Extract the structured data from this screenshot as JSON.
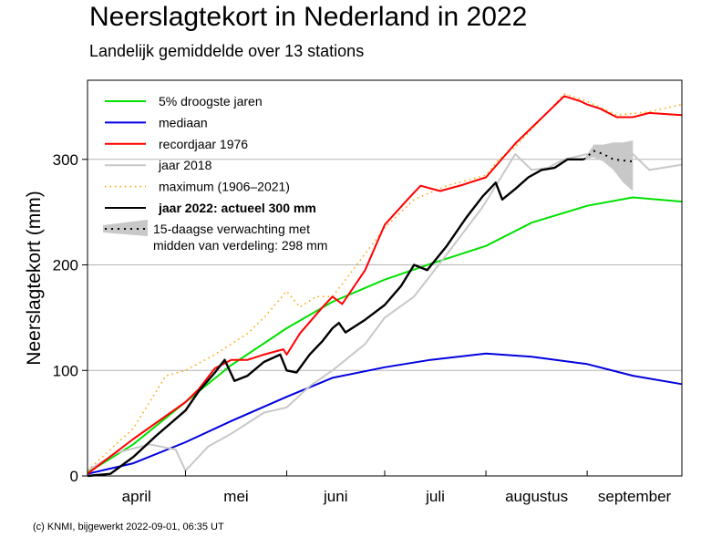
{
  "title": "Neerslagtekort in Nederland in 2022",
  "subtitle": "Landelijk gemiddelde over 13 stations",
  "footer": "(c) KNMI, bijgewerkt 2022-09-01, 06:35 UT",
  "chart_data": {
    "type": "line",
    "ylabel": "Neerslagtekort (mm)",
    "xlabel": "",
    "ylim": [
      0,
      375
    ],
    "y_ticks": [
      0,
      100,
      200,
      300
    ],
    "x_domain": [
      "2022-04-01",
      "2022-09-30"
    ],
    "x_month_labels": [
      "april",
      "mei",
      "juni",
      "juli",
      "augustus",
      "september"
    ],
    "grid": "horizontal at 100, 200, 300",
    "legend_position": "top-left",
    "series": [
      {
        "name": "5% droogste jaren",
        "color": "#00e000",
        "style": "solid",
        "points": [
          [
            "2022-04-01",
            3
          ],
          [
            "2022-04-15",
            30
          ],
          [
            "2022-05-01",
            70
          ],
          [
            "2022-05-15",
            105
          ],
          [
            "2022-06-01",
            140
          ],
          [
            "2022-06-15",
            165
          ],
          [
            "2022-07-01",
            186
          ],
          [
            "2022-07-15",
            201
          ],
          [
            "2022-08-01",
            218
          ],
          [
            "2022-08-15",
            240
          ],
          [
            "2022-09-01",
            256
          ],
          [
            "2022-09-15",
            264
          ],
          [
            "2022-09-30",
            260
          ]
        ]
      },
      {
        "name": "mediaan",
        "color": "#0000e0",
        "style": "solid",
        "points": [
          [
            "2022-04-01",
            2
          ],
          [
            "2022-04-15",
            12
          ],
          [
            "2022-05-01",
            32
          ],
          [
            "2022-05-15",
            52
          ],
          [
            "2022-06-01",
            75
          ],
          [
            "2022-06-15",
            93
          ],
          [
            "2022-07-01",
            103
          ],
          [
            "2022-07-15",
            110
          ],
          [
            "2022-08-01",
            116
          ],
          [
            "2022-08-15",
            113
          ],
          [
            "2022-09-01",
            106
          ],
          [
            "2022-09-15",
            95
          ],
          [
            "2022-09-30",
            87
          ]
        ]
      },
      {
        "name": "recordjaar 1976",
        "color": "#ff0000",
        "style": "solid",
        "points": [
          [
            "2022-04-01",
            2
          ],
          [
            "2022-04-15",
            35
          ],
          [
            "2022-05-01",
            70
          ],
          [
            "2022-05-05",
            82
          ],
          [
            "2022-05-10",
            102
          ],
          [
            "2022-05-15",
            110
          ],
          [
            "2022-05-20",
            110
          ],
          [
            "2022-05-25",
            115
          ],
          [
            "2022-05-31",
            120
          ],
          [
            "2022-06-01",
            115
          ],
          [
            "2022-06-05",
            135
          ],
          [
            "2022-06-12",
            160
          ],
          [
            "2022-06-15",
            170
          ],
          [
            "2022-06-18",
            163
          ],
          [
            "2022-06-25",
            195
          ],
          [
            "2022-07-01",
            238
          ],
          [
            "2022-07-08",
            262
          ],
          [
            "2022-07-12",
            275
          ],
          [
            "2022-07-18",
            270
          ],
          [
            "2022-07-25",
            276
          ],
          [
            "2022-08-01",
            283
          ],
          [
            "2022-08-10",
            315
          ],
          [
            "2022-08-20",
            345
          ],
          [
            "2022-08-25",
            360
          ],
          [
            "2022-08-30",
            355
          ],
          [
            "2022-09-01",
            352
          ],
          [
            "2022-09-05",
            348
          ],
          [
            "2022-09-10",
            340
          ],
          [
            "2022-09-15",
            340
          ],
          [
            "2022-09-20",
            344
          ],
          [
            "2022-09-30",
            342
          ]
        ]
      },
      {
        "name": "jaar 2018",
        "color": "#c8c8c8",
        "style": "solid",
        "points": [
          [
            "2022-04-01",
            5
          ],
          [
            "2022-04-10",
            22
          ],
          [
            "2022-04-20",
            30
          ],
          [
            "2022-04-28",
            25
          ],
          [
            "2022-05-01",
            5
          ],
          [
            "2022-05-08",
            28
          ],
          [
            "2022-05-15",
            40
          ],
          [
            "2022-05-25",
            60
          ],
          [
            "2022-06-01",
            65
          ],
          [
            "2022-06-08",
            85
          ],
          [
            "2022-06-15",
            100
          ],
          [
            "2022-06-25",
            125
          ],
          [
            "2022-07-01",
            150
          ],
          [
            "2022-07-10",
            170
          ],
          [
            "2022-07-20",
            210
          ],
          [
            "2022-07-31",
            255
          ],
          [
            "2022-08-05",
            280
          ],
          [
            "2022-08-10",
            305
          ],
          [
            "2022-08-15",
            290
          ],
          [
            "2022-08-20",
            292
          ],
          [
            "2022-08-25",
            300
          ],
          [
            "2022-09-01",
            305
          ],
          [
            "2022-09-10",
            302
          ],
          [
            "2022-09-15",
            305
          ],
          [
            "2022-09-20",
            290
          ],
          [
            "2022-09-30",
            295
          ]
        ]
      },
      {
        "name": "maximum (1906–2021)",
        "color": "#ffa500",
        "style": "dotted",
        "points": [
          [
            "2022-04-01",
            5
          ],
          [
            "2022-04-15",
            45
          ],
          [
            "2022-04-25",
            95
          ],
          [
            "2022-05-01",
            100
          ],
          [
            "2022-05-10",
            115
          ],
          [
            "2022-05-20",
            135
          ],
          [
            "2022-05-25",
            150
          ],
          [
            "2022-06-01",
            175
          ],
          [
            "2022-06-05",
            160
          ],
          [
            "2022-06-10",
            170
          ],
          [
            "2022-06-15",
            170
          ],
          [
            "2022-06-20",
            190
          ],
          [
            "2022-07-01",
            235
          ],
          [
            "2022-07-10",
            262
          ],
          [
            "2022-07-20",
            275
          ],
          [
            "2022-08-01",
            285
          ],
          [
            "2022-08-05",
            300
          ],
          [
            "2022-08-10",
            312
          ],
          [
            "2022-08-20",
            345
          ],
          [
            "2022-08-25",
            362
          ],
          [
            "2022-09-01",
            355
          ],
          [
            "2022-09-10",
            342
          ],
          [
            "2022-09-20",
            345
          ],
          [
            "2022-09-30",
            352
          ]
        ]
      },
      {
        "name": "jaar 2022: actueel 300 mm",
        "color": "#000000",
        "style": "solid",
        "points": [
          [
            "2022-04-01",
            0
          ],
          [
            "2022-04-08",
            2
          ],
          [
            "2022-04-15",
            18
          ],
          [
            "2022-04-22",
            38
          ],
          [
            "2022-05-01",
            62
          ],
          [
            "2022-05-05",
            80
          ],
          [
            "2022-05-10",
            98
          ],
          [
            "2022-05-13",
            110
          ],
          [
            "2022-05-16",
            90
          ],
          [
            "2022-05-20",
            95
          ],
          [
            "2022-05-25",
            108
          ],
          [
            "2022-05-30",
            115
          ],
          [
            "2022-06-01",
            100
          ],
          [
            "2022-06-04",
            98
          ],
          [
            "2022-06-08",
            115
          ],
          [
            "2022-06-12",
            128
          ],
          [
            "2022-06-15",
            140
          ],
          [
            "2022-06-17",
            145
          ],
          [
            "2022-06-19",
            136
          ],
          [
            "2022-06-25",
            148
          ],
          [
            "2022-07-01",
            162
          ],
          [
            "2022-07-06",
            180
          ],
          [
            "2022-07-10",
            200
          ],
          [
            "2022-07-14",
            195
          ],
          [
            "2022-07-20",
            218
          ],
          [
            "2022-07-26",
            245
          ],
          [
            "2022-07-31",
            265
          ],
          [
            "2022-08-04",
            278
          ],
          [
            "2022-08-06",
            262
          ],
          [
            "2022-08-10",
            272
          ],
          [
            "2022-08-14",
            283
          ],
          [
            "2022-08-18",
            290
          ],
          [
            "2022-08-22",
            292
          ],
          [
            "2022-08-26",
            300
          ],
          [
            "2022-08-31",
            300
          ]
        ]
      }
    ],
    "forecast": {
      "label": "15-daagse verwachting met midden van verdeling: 298 mm",
      "color": "#000000",
      "band_color": "#c8c8c8",
      "median": [
        [
          "2022-08-31",
          300
        ],
        [
          "2022-09-03",
          308
        ],
        [
          "2022-09-06",
          305
        ],
        [
          "2022-09-09",
          300
        ],
        [
          "2022-09-12",
          299
        ],
        [
          "2022-09-15",
          298
        ]
      ],
      "band": [
        [
          "2022-08-31",
          300,
          300
        ],
        [
          "2022-09-03",
          302,
          314
        ],
        [
          "2022-09-06",
          298,
          314
        ],
        [
          "2022-09-09",
          290,
          316
        ],
        [
          "2022-09-12",
          278,
          316
        ],
        [
          "2022-09-15",
          270,
          318
        ]
      ]
    }
  }
}
